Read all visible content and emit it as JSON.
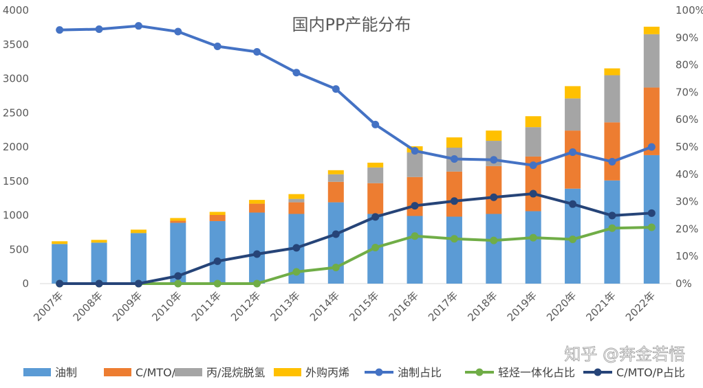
{
  "chart_data": {
    "type": "bar",
    "subtype": "stacked-bar-with-lines",
    "title": "国内PP产能分布",
    "categories": [
      "2007年",
      "2008年",
      "2009年",
      "2010年",
      "2011年",
      "2012年",
      "2013年",
      "2014年",
      "2015年",
      "2016年",
      "2017年",
      "2018年",
      "2019年",
      "2020年",
      "2021年",
      "2022年"
    ],
    "y_left": {
      "ylim": [
        0,
        4000
      ],
      "ticks": [
        0,
        500,
        1000,
        1500,
        2000,
        2500,
        3000,
        3500,
        4000
      ]
    },
    "y_right": {
      "ylim": [
        0,
        1
      ],
      "ticks": [
        "0%",
        "10%",
        "20%",
        "30%",
        "40%",
        "50%",
        "60%",
        "70%",
        "80%",
        "90%",
        "100%"
      ]
    },
    "bar_series": [
      {
        "name": "油制",
        "color": "#5B9BD5",
        "values": [
          580,
          600,
          740,
          890,
          915,
          1040,
          1020,
          1190,
          1020,
          990,
          980,
          1020,
          1060,
          1390,
          1510,
          1880
        ]
      },
      {
        "name": "C/MTO/P",
        "color": "#ED7D31",
        "values": [
          0,
          0,
          0,
          30,
          90,
          130,
          170,
          300,
          450,
          570,
          660,
          700,
          800,
          850,
          850,
          990
        ]
      },
      {
        "name": "丙/混烷脱氢",
        "color": "#A5A5A5",
        "values": [
          0,
          0,
          0,
          0,
          0,
          0,
          50,
          110,
          230,
          360,
          350,
          370,
          430,
          470,
          690,
          780
        ]
      },
      {
        "name": "外购丙烯",
        "color": "#FFC000",
        "values": [
          40,
          40,
          50,
          40,
          45,
          55,
          70,
          60,
          70,
          90,
          150,
          150,
          160,
          180,
          100,
          110
        ]
      }
    ],
    "line_series": [
      {
        "name": "油制占比",
        "color": "#4472C4",
        "values": [
          0.928,
          0.931,
          0.943,
          0.922,
          0.868,
          0.848,
          0.772,
          0.712,
          0.582,
          0.486,
          0.456,
          0.453,
          0.433,
          0.481,
          0.446,
          0.5
        ]
      },
      {
        "name": "轻烃一体化占比",
        "color": "#70AD47",
        "values": [
          0,
          0,
          0,
          0,
          0,
          0,
          0.043,
          0.059,
          0.132,
          0.174,
          0.164,
          0.158,
          0.168,
          0.162,
          0.203,
          0.206
        ]
      },
      {
        "name": "C/MTO/P占比",
        "color": "#264478",
        "values": [
          0,
          0,
          0,
          0.028,
          0.082,
          0.108,
          0.131,
          0.181,
          0.244,
          0.285,
          0.302,
          0.316,
          0.329,
          0.291,
          0.249,
          0.258
        ]
      }
    ],
    "legend_position": "bottom",
    "grid": false
  },
  "watermark": "知乎 @奔金若悟"
}
